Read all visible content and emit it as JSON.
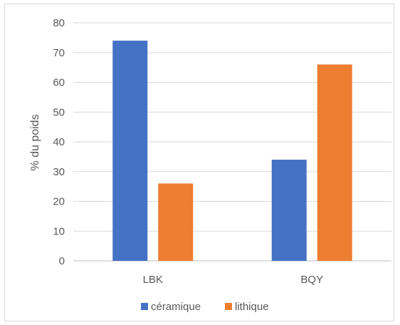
{
  "chart_data": {
    "type": "bar",
    "categories": [
      "LBK",
      "BQY"
    ],
    "series": [
      {
        "name": "céramique",
        "values": [
          74,
          34
        ],
        "color": "#4472C4"
      },
      {
        "name": "lithique",
        "values": [
          26,
          66
        ],
        "color": "#ED7D31"
      }
    ],
    "title": "",
    "xlabel": "",
    "ylabel": "% du poids",
    "ylim": [
      0,
      80
    ],
    "yticks": [
      0,
      10,
      20,
      30,
      40,
      50,
      60,
      70,
      80
    ],
    "grid": true,
    "legend": "bottom"
  }
}
